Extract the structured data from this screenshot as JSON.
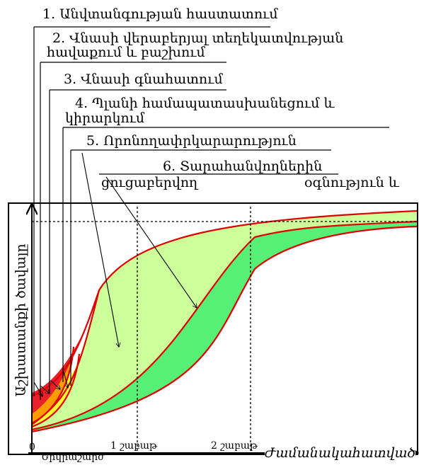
{
  "steps": [
    {
      "line1": "1. Անվտանգության հաստատում"
    },
    {
      "line1": "2. Վնասի վերաբերյալ տեղեկատվության",
      "line2": "հավաքում և բաշխում"
    },
    {
      "line1": "3. Վնասի գնահատում"
    },
    {
      "line1": "4. Պլանի համապատասխանեցում և",
      "line2": "կիրարկում"
    },
    {
      "line1": "5. Որոնողափրկարարություն"
    },
    {
      "line1": "6. Տարահանվողներին",
      "line2a": "ցուցաբերվող",
      "line2b": "օգնություն և"
    }
  ],
  "axes": {
    "y_label": "Աշխատանքի ծավալը",
    "x_label": "Ժամանակահատված",
    "origin_label": "0",
    "earthquake_label": "Երկրաշարժ",
    "week1_label": "1 շաբաթ",
    "week2_label": "2 շաբաթ"
  },
  "colors": {
    "red_band": "#e8202a",
    "orange_band": "#ff9d00",
    "yellow_band": "#ffff30",
    "lightgreen_band": "#ccff99",
    "green_band": "#55f075",
    "outline": "#e00000"
  }
}
